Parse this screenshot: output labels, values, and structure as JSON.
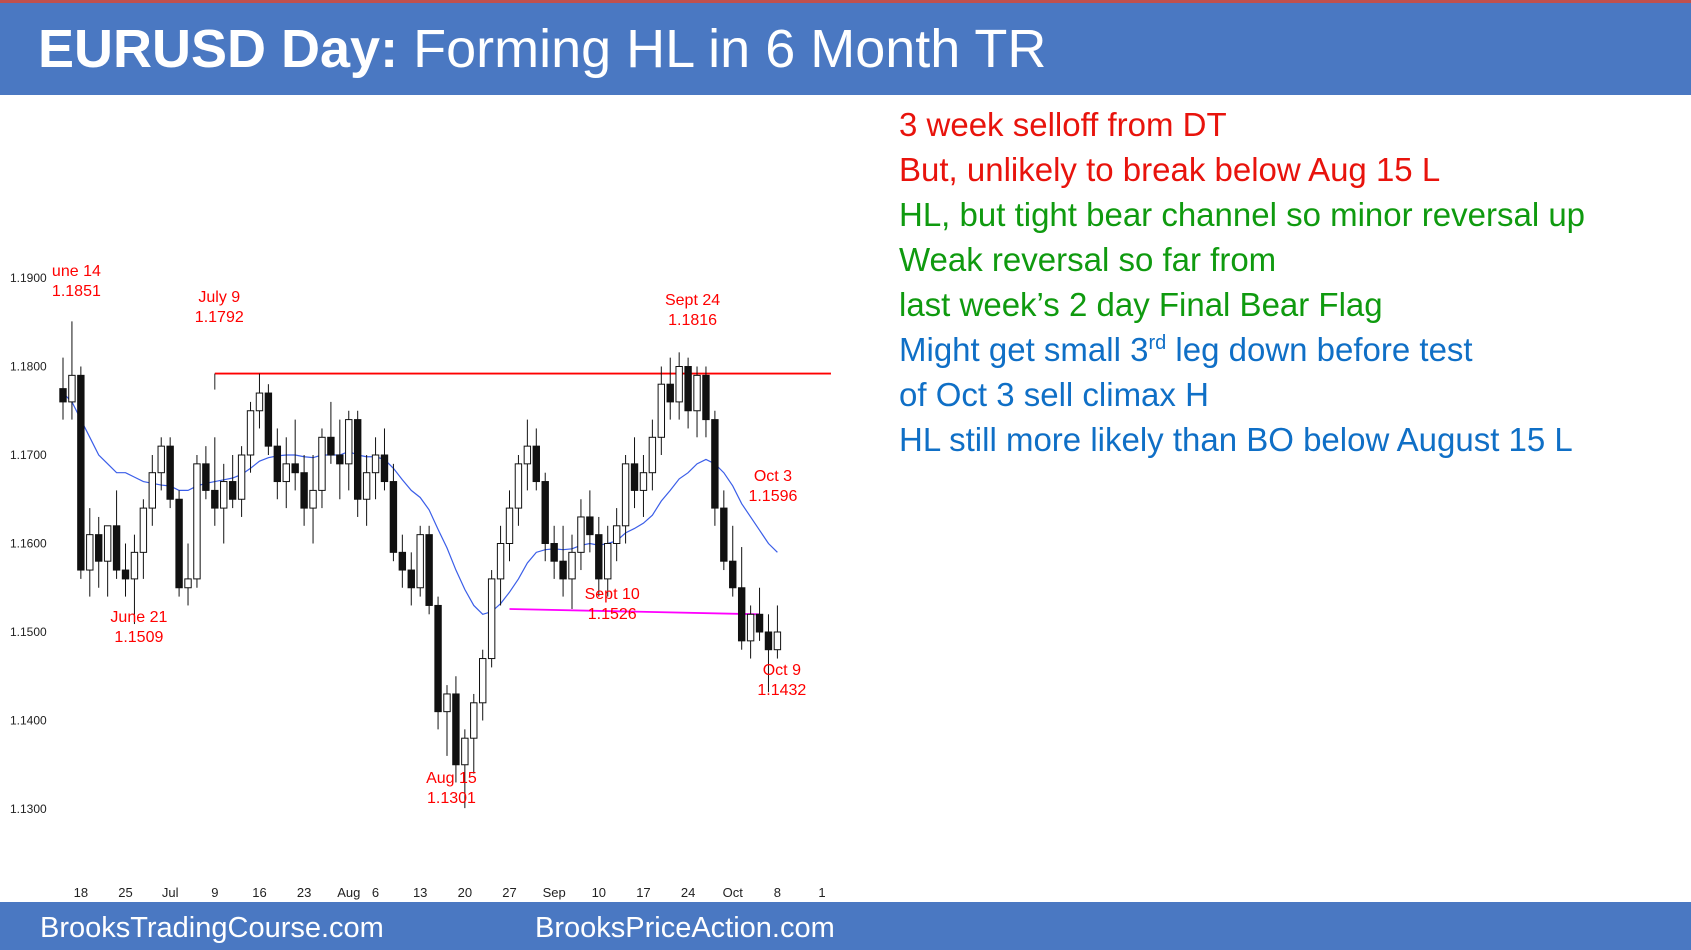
{
  "header": {
    "title_bold": "EURUSD Day:",
    "title_rest": "Forming HL in 6 Month TR"
  },
  "footer": {
    "left": "BrooksTradingCourse.com",
    "right": "BrooksPriceAction.com"
  },
  "notes": [
    {
      "text": "3 week selloff from DT",
      "color": "#e8130c"
    },
    {
      "text": "But, unlikely to break below Aug 15 L",
      "color": "#e8130c"
    },
    {
      "text": "HL, but tight bear channel so minor reversal up",
      "color": "#0f9a0f"
    },
    {
      "text": "Weak reversal so far from",
      "color": "#0f9a0f"
    },
    {
      "text": "last week’s 2 day Final Bear Flag",
      "color": "#0f9a0f"
    },
    {
      "text_before": "Might get small 3",
      "sup": "rd",
      "text_after": " leg down before test",
      "color": "#0f6fc6"
    },
    {
      "text": "of Oct 3 sell climax H",
      "color": "#0f6fc6"
    },
    {
      "text": "HL still more likely than BO below August 15 L",
      "color": "#0f6fc6"
    }
  ],
  "chart_data": {
    "type": "candlestick",
    "ylim": [
      1.128,
      1.192
    ],
    "y_ticks": [
      "1.1900",
      "1.1800",
      "1.1700",
      "1.1600",
      "1.1500",
      "1.1400",
      "1.1300"
    ],
    "y_tick_values": [
      1.19,
      1.18,
      1.17,
      1.16,
      1.15,
      1.14,
      1.13
    ],
    "x_ticks": [
      {
        "label": "18",
        "bar": 2
      },
      {
        "label": "25",
        "bar": 7
      },
      {
        "label": "Jul",
        "bar": 12
      },
      {
        "label": "9",
        "bar": 17
      },
      {
        "label": "16",
        "bar": 22
      },
      {
        "label": "23",
        "bar": 27
      },
      {
        "label": "Aug",
        "bar": 32
      },
      {
        "label": "6",
        "bar": 35
      },
      {
        "label": "13",
        "bar": 40
      },
      {
        "label": "20",
        "bar": 45
      },
      {
        "label": "27",
        "bar": 50
      },
      {
        "label": "Sep",
        "bar": 55
      },
      {
        "label": "10",
        "bar": 60
      },
      {
        "label": "17",
        "bar": 65
      },
      {
        "label": "24",
        "bar": 70
      },
      {
        "label": "Oct",
        "bar": 75
      },
      {
        "label": "8",
        "bar": 80
      },
      {
        "label": "1",
        "bar": 85
      }
    ],
    "bars_ohlc": [
      [
        1.1775,
        1.181,
        1.174,
        1.176
      ],
      [
        1.176,
        1.1851,
        1.174,
        1.179
      ],
      [
        1.179,
        1.18,
        1.156,
        1.157
      ],
      [
        1.157,
        1.164,
        1.154,
        1.161
      ],
      [
        1.161,
        1.163,
        1.155,
        1.158
      ],
      [
        1.158,
        1.162,
        1.154,
        1.162
      ],
      [
        1.162,
        1.166,
        1.156,
        1.157
      ],
      [
        1.157,
        1.16,
        1.154,
        1.156
      ],
      [
        1.156,
        1.161,
        1.1509,
        1.159
      ],
      [
        1.159,
        1.165,
        1.156,
        1.164
      ],
      [
        1.164,
        1.17,
        1.162,
        1.168
      ],
      [
        1.168,
        1.172,
        1.166,
        1.171
      ],
      [
        1.171,
        1.172,
        1.164,
        1.165
      ],
      [
        1.165,
        1.166,
        1.154,
        1.155
      ],
      [
        1.155,
        1.16,
        1.153,
        1.156
      ],
      [
        1.156,
        1.17,
        1.155,
        1.169
      ],
      [
        1.169,
        1.171,
        1.165,
        1.166
      ],
      [
        1.166,
        1.172,
        1.162,
        1.164
      ],
      [
        1.164,
        1.169,
        1.16,
        1.167
      ],
      [
        1.167,
        1.17,
        1.164,
        1.165
      ],
      [
        1.165,
        1.171,
        1.163,
        1.17
      ],
      [
        1.17,
        1.176,
        1.168,
        1.175
      ],
      [
        1.175,
        1.1792,
        1.173,
        1.177
      ],
      [
        1.177,
        1.178,
        1.17,
        1.171
      ],
      [
        1.171,
        1.173,
        1.165,
        1.167
      ],
      [
        1.167,
        1.172,
        1.164,
        1.169
      ],
      [
        1.169,
        1.174,
        1.166,
        1.168
      ],
      [
        1.168,
        1.17,
        1.162,
        1.164
      ],
      [
        1.164,
        1.17,
        1.16,
        1.166
      ],
      [
        1.166,
        1.173,
        1.164,
        1.172
      ],
      [
        1.172,
        1.176,
        1.169,
        1.17
      ],
      [
        1.17,
        1.174,
        1.165,
        1.169
      ],
      [
        1.169,
        1.175,
        1.166,
        1.174
      ],
      [
        1.174,
        1.175,
        1.163,
        1.165
      ],
      [
        1.165,
        1.17,
        1.162,
        1.168
      ],
      [
        1.168,
        1.172,
        1.165,
        1.17
      ],
      [
        1.17,
        1.173,
        1.166,
        1.167
      ],
      [
        1.167,
        1.169,
        1.158,
        1.159
      ],
      [
        1.159,
        1.161,
        1.155,
        1.157
      ],
      [
        1.157,
        1.159,
        1.153,
        1.155
      ],
      [
        1.155,
        1.162,
        1.154,
        1.161
      ],
      [
        1.161,
        1.162,
        1.152,
        1.153
      ],
      [
        1.153,
        1.154,
        1.139,
        1.141
      ],
      [
        1.141,
        1.144,
        1.136,
        1.143
      ],
      [
        1.143,
        1.145,
        1.133,
        1.135
      ],
      [
        1.135,
        1.139,
        1.1301,
        1.138
      ],
      [
        1.138,
        1.143,
        1.134,
        1.142
      ],
      [
        1.142,
        1.148,
        1.14,
        1.147
      ],
      [
        1.147,
        1.157,
        1.146,
        1.156
      ],
      [
        1.156,
        1.162,
        1.153,
        1.16
      ],
      [
        1.16,
        1.166,
        1.158,
        1.164
      ],
      [
        1.164,
        1.17,
        1.162,
        1.169
      ],
      [
        1.169,
        1.174,
        1.166,
        1.171
      ],
      [
        1.171,
        1.173,
        1.166,
        1.167
      ],
      [
        1.167,
        1.168,
        1.158,
        1.16
      ],
      [
        1.16,
        1.162,
        1.156,
        1.158
      ],
      [
        1.158,
        1.162,
        1.154,
        1.156
      ],
      [
        1.156,
        1.161,
        1.1526,
        1.159
      ],
      [
        1.159,
        1.165,
        1.157,
        1.163
      ],
      [
        1.163,
        1.166,
        1.159,
        1.161
      ],
      [
        1.161,
        1.163,
        1.154,
        1.156
      ],
      [
        1.156,
        1.162,
        1.154,
        1.16
      ],
      [
        1.16,
        1.164,
        1.158,
        1.162
      ],
      [
        1.162,
        1.17,
        1.16,
        1.169
      ],
      [
        1.169,
        1.172,
        1.164,
        1.166
      ],
      [
        1.166,
        1.17,
        1.163,
        1.168
      ],
      [
        1.168,
        1.174,
        1.166,
        1.172
      ],
      [
        1.172,
        1.18,
        1.17,
        1.178
      ],
      [
        1.178,
        1.181,
        1.174,
        1.176
      ],
      [
        1.176,
        1.1816,
        1.174,
        1.18
      ],
      [
        1.18,
        1.181,
        1.173,
        1.175
      ],
      [
        1.175,
        1.18,
        1.172,
        1.179
      ],
      [
        1.179,
        1.18,
        1.172,
        1.174
      ],
      [
        1.174,
        1.175,
        1.162,
        1.164
      ],
      [
        1.164,
        1.166,
        1.157,
        1.158
      ],
      [
        1.158,
        1.162,
        1.154,
        1.155
      ],
      [
        1.155,
        1.1596,
        1.148,
        1.149
      ],
      [
        1.149,
        1.153,
        1.147,
        1.152
      ],
      [
        1.152,
        1.155,
        1.149,
        1.15
      ],
      [
        1.15,
        1.152,
        1.1432,
        1.148
      ],
      [
        1.148,
        1.153,
        1.147,
        1.15
      ]
    ],
    "ema_20": [
      1.177,
      1.176,
      1.174,
      1.172,
      1.17,
      1.169,
      1.168,
      1.168,
      1.1675,
      1.167,
      1.1668,
      1.1666,
      1.1665,
      1.166,
      1.166,
      1.1665,
      1.1668,
      1.167,
      1.1672,
      1.1674,
      1.1678,
      1.1685,
      1.1693,
      1.1697,
      1.1699,
      1.17,
      1.17,
      1.1698,
      1.1697,
      1.17,
      1.17,
      1.17,
      1.1704,
      1.17,
      1.1698,
      1.1698,
      1.1695,
      1.1685,
      1.1672,
      1.166,
      1.1652,
      1.1638,
      1.1616,
      1.1595,
      1.157,
      1.1548,
      1.153,
      1.152,
      1.1523,
      1.1532,
      1.1545,
      1.156,
      1.1578,
      1.159,
      1.1593,
      1.1594,
      1.1593,
      1.1594,
      1.1598,
      1.16,
      1.1598,
      1.16,
      1.1603,
      1.1612,
      1.1617,
      1.1623,
      1.1632,
      1.1648,
      1.166,
      1.1673,
      1.168,
      1.169,
      1.1695,
      1.169,
      1.168,
      1.1665,
      1.1645,
      1.163,
      1.1615,
      1.16,
      1.159
    ],
    "resistance_line": {
      "from_bar": 17,
      "to_bar": 86,
      "y1": 1.1792,
      "y2": 1.1792,
      "color": "#ff0000"
    },
    "support_line": {
      "from_bar": 50,
      "to_bar": 78,
      "y1": 1.1526,
      "y2": 1.152,
      "color": "#ff00ff"
    },
    "annotations": [
      {
        "date": "une 14",
        "price": "1.1851",
        "bar": 1.5
      },
      {
        "date": "July 9",
        "price": "1.1792",
        "bar": 17.5
      },
      {
        "date": "Sept 24",
        "price": "1.1816",
        "bar": 70.5
      },
      {
        "date": "Oct 3",
        "price": "1.1596",
        "bar": 79.5
      },
      {
        "date": "June 21",
        "price": "1.1509",
        "bar": 8.5
      },
      {
        "date": "Sept 10",
        "price": "1.1526",
        "bar": 61.5
      },
      {
        "date": "Oct 9",
        "price": "1.1432",
        "bar": 80.5
      },
      {
        "date": "Aug 15",
        "price": "1.1301",
        "bar": 43.5
      }
    ]
  }
}
